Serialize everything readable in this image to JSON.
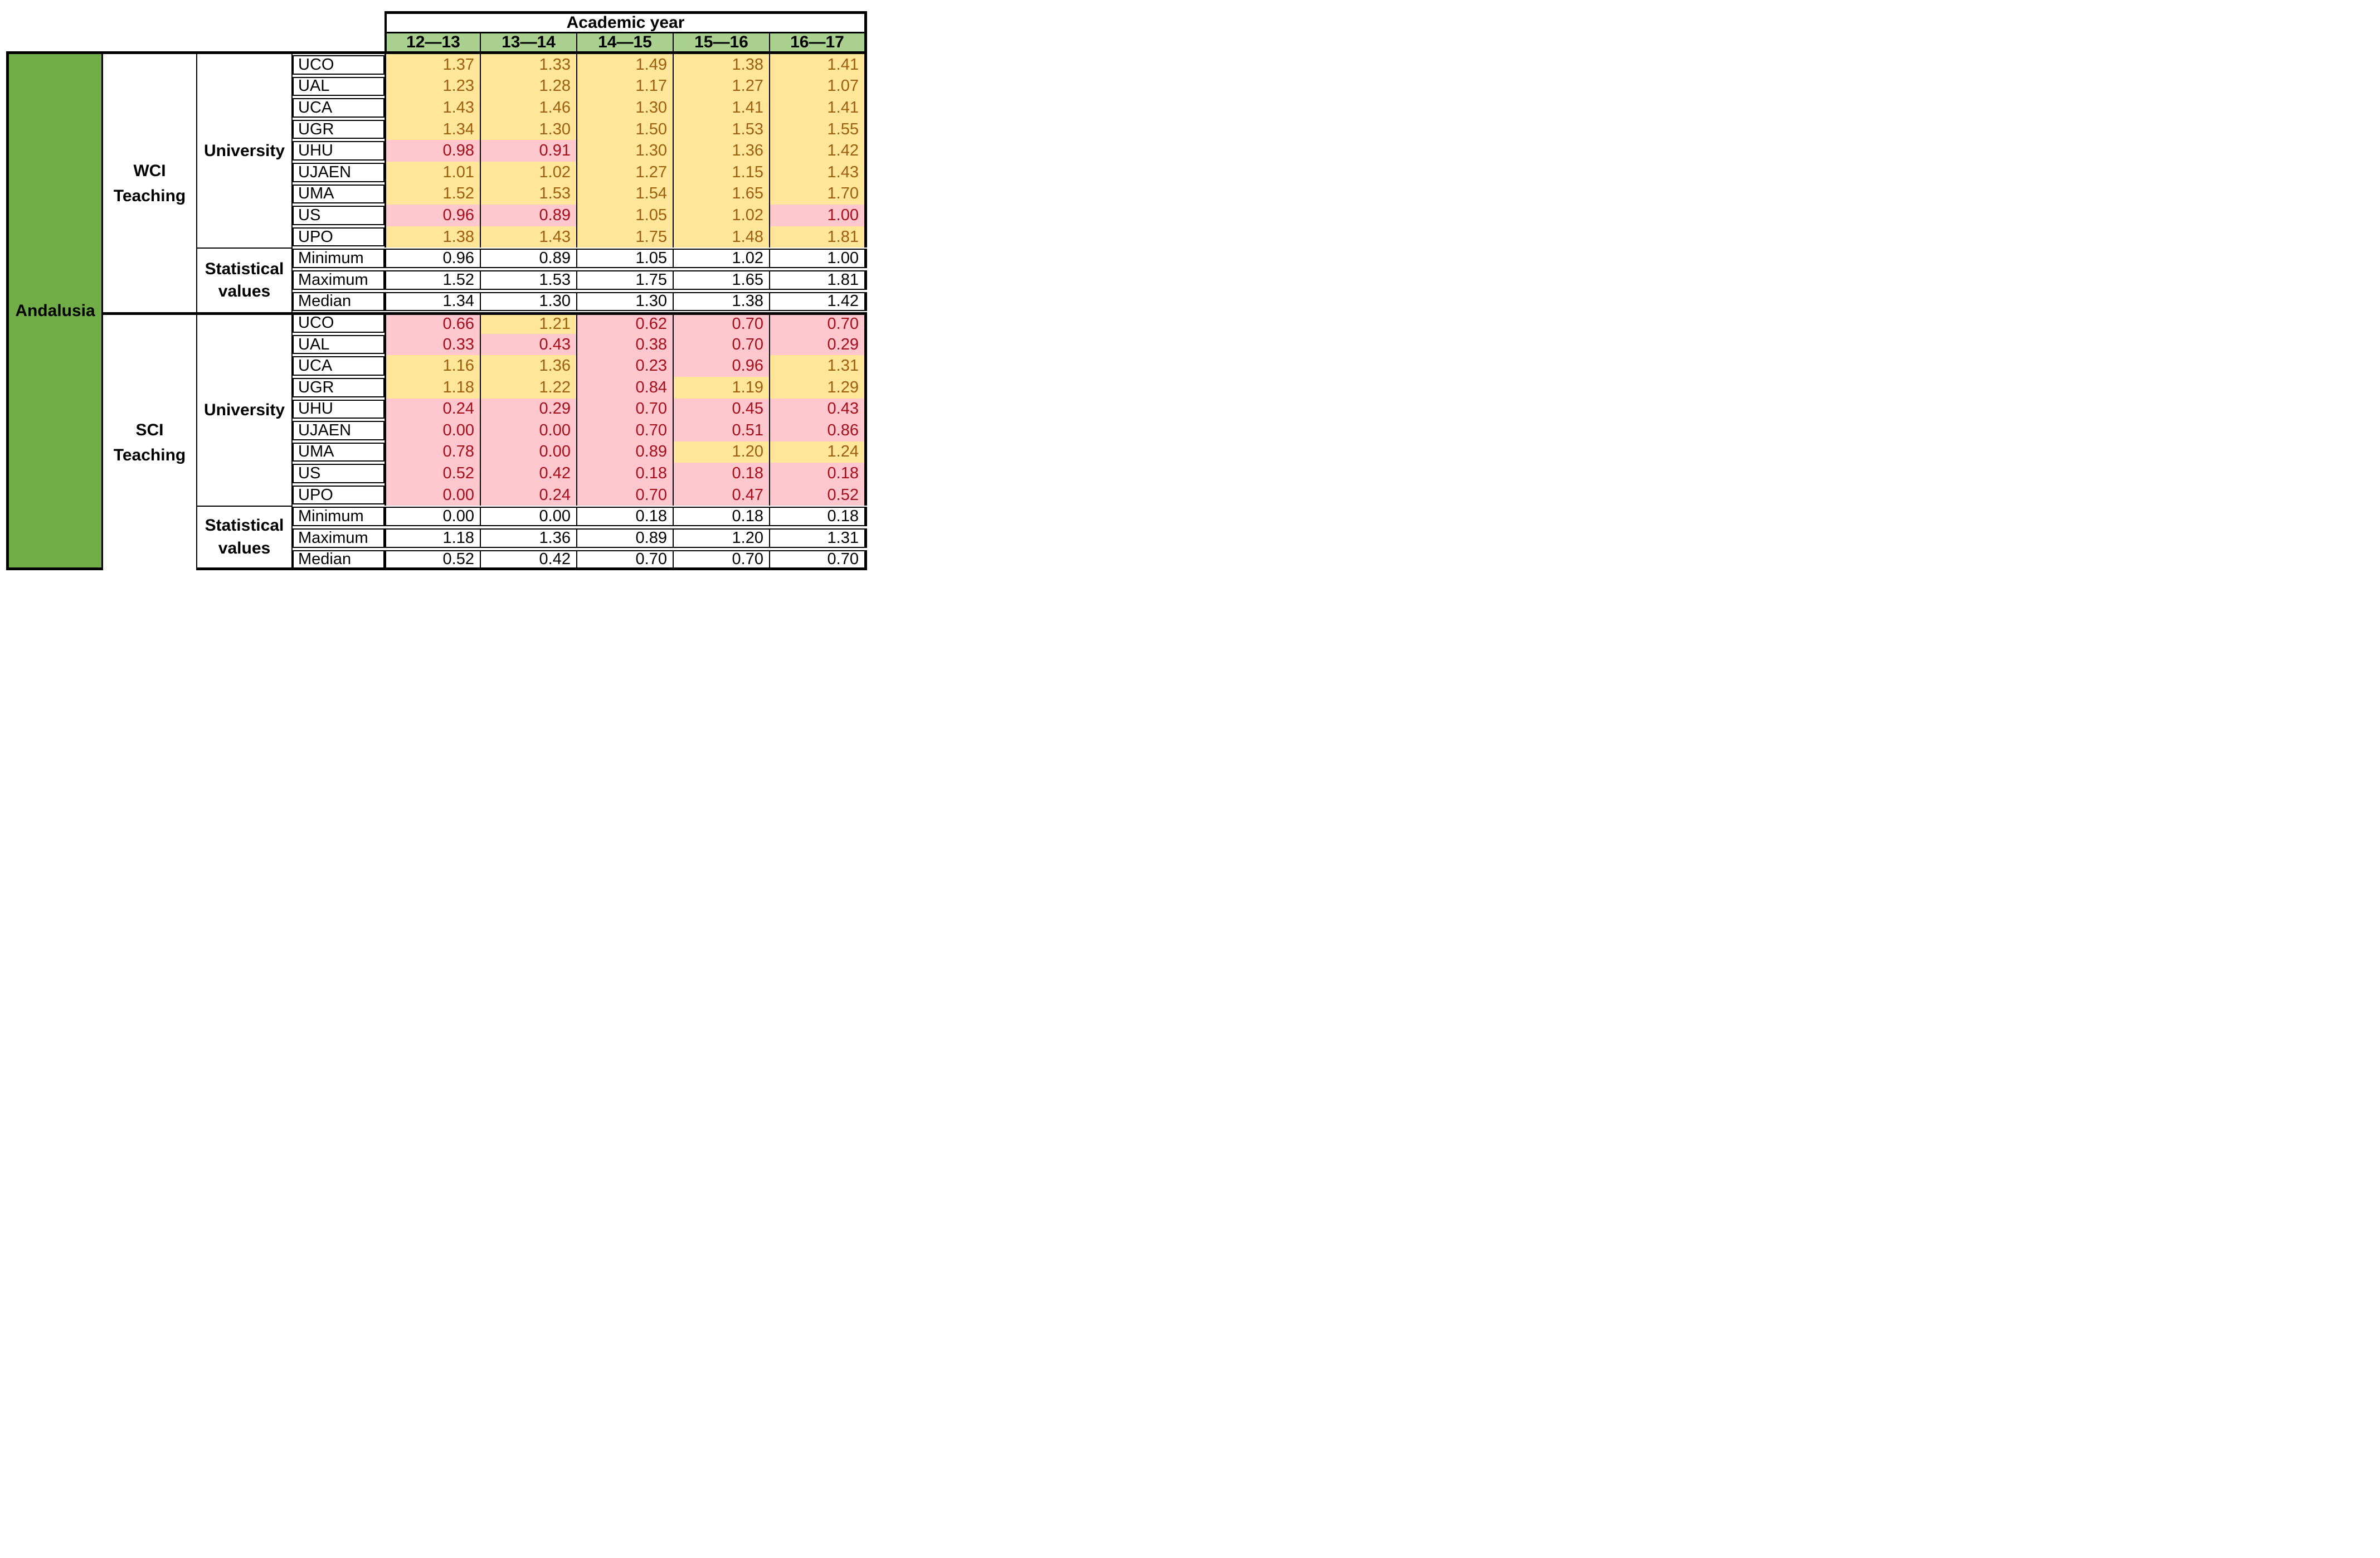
{
  "header": {
    "title": "Academic year",
    "years": [
      "12—13",
      "13—14",
      "14—15",
      "15—16",
      "16—17"
    ]
  },
  "region_label": "Andalusia",
  "row_group_label": "University",
  "stats_group_label": [
    "Statistical",
    "values"
  ],
  "sections": [
    {
      "label": [
        "WCI",
        "Teaching"
      ],
      "rows": [
        {
          "name": "UCO",
          "values": [
            "1.37",
            "1.33",
            "1.49",
            "1.38",
            "1.41"
          ],
          "fills": [
            "y",
            "y",
            "y",
            "y",
            "y"
          ]
        },
        {
          "name": "UAL",
          "values": [
            "1.23",
            "1.28",
            "1.17",
            "1.27",
            "1.07"
          ],
          "fills": [
            "y",
            "y",
            "y",
            "y",
            "y"
          ]
        },
        {
          "name": "UCA",
          "values": [
            "1.43",
            "1.46",
            "1.30",
            "1.41",
            "1.41"
          ],
          "fills": [
            "y",
            "y",
            "y",
            "y",
            "y"
          ]
        },
        {
          "name": "UGR",
          "values": [
            "1.34",
            "1.30",
            "1.50",
            "1.53",
            "1.55"
          ],
          "fills": [
            "y",
            "y",
            "y",
            "y",
            "y"
          ]
        },
        {
          "name": "UHU",
          "values": [
            "0.98",
            "0.91",
            "1.30",
            "1.36",
            "1.42"
          ],
          "fills": [
            "p",
            "p",
            "y",
            "y",
            "y"
          ]
        },
        {
          "name": "UJAEN",
          "values": [
            "1.01",
            "1.02",
            "1.27",
            "1.15",
            "1.43"
          ],
          "fills": [
            "y",
            "y",
            "y",
            "y",
            "y"
          ]
        },
        {
          "name": "UMA",
          "values": [
            "1.52",
            "1.53",
            "1.54",
            "1.65",
            "1.70"
          ],
          "fills": [
            "y",
            "y",
            "y",
            "y",
            "y"
          ]
        },
        {
          "name": "US",
          "values": [
            "0.96",
            "0.89",
            "1.05",
            "1.02",
            "1.00"
          ],
          "fills": [
            "p",
            "p",
            "y",
            "y",
            "p"
          ]
        },
        {
          "name": "UPO",
          "values": [
            "1.38",
            "1.43",
            "1.75",
            "1.48",
            "1.81"
          ],
          "fills": [
            "y",
            "y",
            "y",
            "y",
            "y"
          ]
        }
      ],
      "stats": [
        {
          "name": "Minimum",
          "values": [
            "0.96",
            "0.89",
            "1.05",
            "1.02",
            "1.00"
          ]
        },
        {
          "name": "Maximum",
          "values": [
            "1.52",
            "1.53",
            "1.75",
            "1.65",
            "1.81"
          ]
        },
        {
          "name": "Median",
          "values": [
            "1.34",
            "1.30",
            "1.30",
            "1.38",
            "1.42"
          ]
        }
      ]
    },
    {
      "label": [
        "SCI",
        "Teaching"
      ],
      "rows": [
        {
          "name": "UCO",
          "values": [
            "0.66",
            "1.21",
            "0.62",
            "0.70",
            "0.70"
          ],
          "fills": [
            "p",
            "y",
            "p",
            "p",
            "p"
          ]
        },
        {
          "name": "UAL",
          "values": [
            "0.33",
            "0.43",
            "0.38",
            "0.70",
            "0.29"
          ],
          "fills": [
            "p",
            "p",
            "p",
            "p",
            "p"
          ]
        },
        {
          "name": "UCA",
          "values": [
            "1.16",
            "1.36",
            "0.23",
            "0.96",
            "1.31"
          ],
          "fills": [
            "y",
            "y",
            "p",
            "p",
            "y"
          ]
        },
        {
          "name": "UGR",
          "values": [
            "1.18",
            "1.22",
            "0.84",
            "1.19",
            "1.29"
          ],
          "fills": [
            "y",
            "y",
            "p",
            "y",
            "y"
          ]
        },
        {
          "name": "UHU",
          "values": [
            "0.24",
            "0.29",
            "0.70",
            "0.45",
            "0.43"
          ],
          "fills": [
            "p",
            "p",
            "p",
            "p",
            "p"
          ]
        },
        {
          "name": "UJAEN",
          "values": [
            "0.00",
            "0.00",
            "0.70",
            "0.51",
            "0.86"
          ],
          "fills": [
            "p",
            "p",
            "p",
            "p",
            "p"
          ]
        },
        {
          "name": "UMA",
          "values": [
            "0.78",
            "0.00",
            "0.89",
            "1.20",
            "1.24"
          ],
          "fills": [
            "p",
            "p",
            "p",
            "y",
            "y"
          ]
        },
        {
          "name": "US",
          "values": [
            "0.52",
            "0.42",
            "0.18",
            "0.18",
            "0.18"
          ],
          "fills": [
            "p",
            "p",
            "p",
            "p",
            "p"
          ]
        },
        {
          "name": "UPO",
          "values": [
            "0.00",
            "0.24",
            "0.70",
            "0.47",
            "0.52"
          ],
          "fills": [
            "p",
            "p",
            "p",
            "p",
            "p"
          ]
        }
      ],
      "stats": [
        {
          "name": "Minimum",
          "values": [
            "0.00",
            "0.00",
            "0.18",
            "0.18",
            "0.18"
          ]
        },
        {
          "name": "Maximum",
          "values": [
            "1.18",
            "1.36",
            "0.89",
            "1.20",
            "1.31"
          ]
        },
        {
          "name": "Median",
          "values": [
            "0.52",
            "0.42",
            "0.70",
            "0.70",
            "0.70"
          ]
        }
      ]
    }
  ],
  "colors": {
    "header_green": "#A9D08E",
    "region_green": "#70AD47",
    "yellow_fill": "#FFE699",
    "pink_fill": "#FFC7CE",
    "yellow_text": "#9C5E10",
    "pink_text": "#A50E1B",
    "border_black": "#000000"
  }
}
